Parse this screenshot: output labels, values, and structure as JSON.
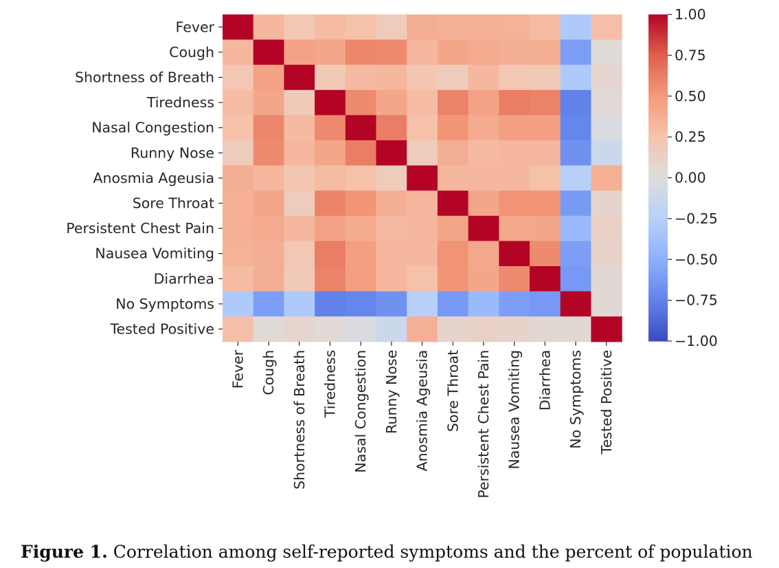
{
  "chart_data": {
    "type": "heatmap",
    "title": "",
    "xlabel": "",
    "ylabel": "",
    "colormap": "coolwarm",
    "vmin": -1.0,
    "vmax": 1.0,
    "categories": [
      "Fever",
      "Cough",
      "Shortness of Breath",
      "Tiredness",
      "Nasal Congestion",
      "Runny Nose",
      "Anosmia Ageusia",
      "Sore Throat",
      "Persistent Chest Pain",
      "Nausea Vomiting",
      "Diarrhea",
      "No Symptoms",
      "Tested Positive"
    ],
    "matrix": [
      [
        1.0,
        0.32,
        0.22,
        0.3,
        0.27,
        0.18,
        0.38,
        0.37,
        0.37,
        0.36,
        0.3,
        -0.3,
        0.28
      ],
      [
        0.32,
        1.0,
        0.45,
        0.43,
        0.58,
        0.57,
        0.32,
        0.43,
        0.4,
        0.38,
        0.38,
        -0.6,
        0.03
      ],
      [
        0.22,
        0.45,
        1.0,
        0.2,
        0.31,
        0.33,
        0.23,
        0.17,
        0.33,
        0.22,
        0.2,
        -0.3,
        0.08
      ],
      [
        0.3,
        0.43,
        0.2,
        1.0,
        0.57,
        0.43,
        0.3,
        0.6,
        0.45,
        0.62,
        0.6,
        -0.75,
        0.04
      ],
      [
        0.27,
        0.58,
        0.31,
        0.57,
        1.0,
        0.62,
        0.27,
        0.52,
        0.4,
        0.47,
        0.47,
        -0.73,
        -0.03
      ],
      [
        0.18,
        0.57,
        0.33,
        0.43,
        0.62,
        1.0,
        0.18,
        0.38,
        0.31,
        0.33,
        0.33,
        -0.67,
        -0.12
      ],
      [
        0.38,
        0.32,
        0.23,
        0.3,
        0.27,
        0.18,
        1.0,
        0.33,
        0.33,
        0.33,
        0.27,
        -0.25,
        0.37
      ],
      [
        0.37,
        0.43,
        0.17,
        0.6,
        0.52,
        0.38,
        0.33,
        1.0,
        0.43,
        0.53,
        0.52,
        -0.62,
        0.09
      ],
      [
        0.37,
        0.4,
        0.33,
        0.45,
        0.4,
        0.31,
        0.33,
        0.43,
        1.0,
        0.41,
        0.43,
        -0.42,
        0.12
      ],
      [
        0.36,
        0.38,
        0.22,
        0.62,
        0.47,
        0.33,
        0.33,
        0.53,
        0.41,
        1.0,
        0.57,
        -0.6,
        0.1
      ],
      [
        0.3,
        0.38,
        0.2,
        0.6,
        0.47,
        0.33,
        0.27,
        0.52,
        0.43,
        0.57,
        1.0,
        -0.63,
        0.05
      ],
      [
        -0.3,
        -0.6,
        -0.3,
        -0.75,
        -0.73,
        -0.67,
        -0.25,
        -0.62,
        -0.42,
        -0.6,
        -0.63,
        1.0,
        0.05
      ],
      [
        0.28,
        0.03,
        0.08,
        0.04,
        -0.03,
        -0.12,
        0.37,
        0.09,
        0.12,
        0.1,
        0.05,
        0.05,
        1.0
      ]
    ],
    "colorbar": {
      "ticks": [
        1.0,
        0.75,
        0.5,
        0.25,
        0.0,
        -0.25,
        -0.5,
        -0.75,
        -1.0
      ],
      "tick_labels": [
        "1.00",
        "0.75",
        "0.50",
        "0.25",
        "0.00",
        "−0.25",
        "−0.50",
        "−0.75",
        "−1.00"
      ]
    }
  },
  "caption": {
    "label": "Figure 1.",
    "text": "Correlation among self-reported symptoms and the percent of population"
  }
}
